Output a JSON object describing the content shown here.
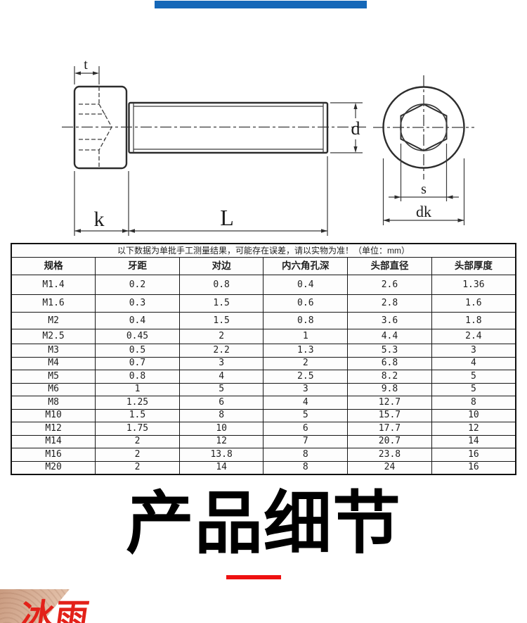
{
  "accent": {
    "top_bar_blue": "#1467b8",
    "underline_red": "#ee1111",
    "logo_red": "#e32119",
    "line_color": "#2d2d2d"
  },
  "diagram": {
    "labels": {
      "t": "t",
      "k": "k",
      "L": "L",
      "d": "d",
      "s": "s",
      "dk": "dk"
    }
  },
  "table": {
    "notice": "以下数据为单批手工测量结果，可能存在误差，请以实物为准！（单位：mm）",
    "headers": [
      "规格",
      "牙距",
      "对边",
      "内六角孔深",
      "头部直径",
      "头部厚度"
    ],
    "rows": [
      [
        "M1.4",
        "0.2",
        "0.8",
        "0.4",
        "2.6",
        "1.36"
      ],
      [
        "M1.6",
        "0.3",
        "1.5",
        "0.6",
        "2.8",
        "1.6"
      ],
      [
        "M2",
        "0.4",
        "1.5",
        "0.8",
        "3.6",
        "1.8"
      ],
      [
        "M2.5",
        "0.45",
        "2",
        "1",
        "4.4",
        "2.4"
      ],
      [
        "M3",
        "0.5",
        "2.2",
        "1.3",
        "5.3",
        "3"
      ],
      [
        "M4",
        "0.7",
        "3",
        "2",
        "6.8",
        "4"
      ],
      [
        "M5",
        "0.8",
        "4",
        "2.5",
        "8.2",
        "5"
      ],
      [
        "M6",
        "1",
        "5",
        "3",
        "9.8",
        "5"
      ],
      [
        "M8",
        "1.25",
        "6",
        "4",
        "12.7",
        "8"
      ],
      [
        "M10",
        "1.5",
        "8",
        "5",
        "15.7",
        "10"
      ],
      [
        "M12",
        "1.75",
        "10",
        "6",
        "17.7",
        "12"
      ],
      [
        "M14",
        "2",
        "12",
        "7",
        "20.7",
        "14"
      ],
      [
        "M16",
        "2",
        "13.8",
        "8",
        "23.8",
        "16"
      ],
      [
        "M20",
        "2",
        "14",
        "8",
        "24",
        "16"
      ]
    ]
  },
  "title": {
    "text": "产品细节"
  },
  "logo": {
    "text": "冰雨"
  }
}
